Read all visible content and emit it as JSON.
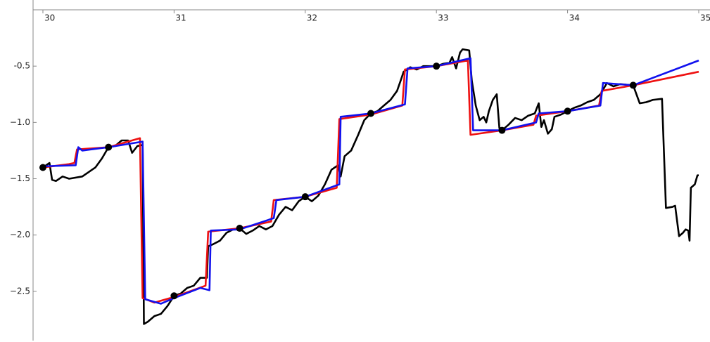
{
  "chart_data": {
    "type": "line",
    "xlim": [
      29.925,
      35.0
    ],
    "ylim": [
      -2.95,
      0.0
    ],
    "xticks": [
      30,
      31,
      32,
      33,
      34,
      35
    ],
    "yticks": [
      {
        "value": -0.5,
        "label": "-0.5"
      },
      {
        "value": -1.0,
        "label": "−1.0"
      },
      {
        "value": -1.5,
        "label": "−1.5"
      },
      {
        "value": -2.0,
        "label": "−2.0"
      },
      {
        "value": -2.5,
        "label": "−2.5"
      }
    ],
    "grid": false,
    "series": [
      {
        "color": "#000000",
        "mode": "line",
        "x": [
          30,
          30.05,
          30.07,
          30.1,
          30.15,
          30.2,
          30.3,
          30.4,
          30.45,
          30.5,
          30.55,
          30.6,
          30.65,
          30.68,
          30.72,
          30.76,
          30.77,
          30.8,
          30.85,
          30.9,
          30.95,
          31,
          31.05,
          31.1,
          31.15,
          31.2,
          31.25,
          31.26,
          31.3,
          31.35,
          31.4,
          31.45,
          31.5,
          31.55,
          31.6,
          31.65,
          31.7,
          31.75,
          31.8,
          31.85,
          31.9,
          31.95,
          32,
          32.05,
          32.1,
          32.15,
          32.2,
          32.25,
          32.27,
          32.3,
          32.35,
          32.4,
          32.45,
          32.5,
          32.55,
          32.6,
          32.65,
          32.7,
          32.73,
          32.75,
          32.8,
          32.85,
          32.9,
          33,
          33.05,
          33.1,
          33.12,
          33.15,
          33.18,
          33.2,
          33.25,
          33.27,
          33.3,
          33.33,
          33.36,
          33.38,
          33.4,
          33.43,
          33.46,
          33.48,
          33.5,
          33.55,
          33.6,
          33.65,
          33.7,
          33.75,
          33.78,
          33.8,
          33.82,
          33.85,
          33.88,
          33.9,
          33.95,
          34,
          34.05,
          34.1,
          34.15,
          34.2,
          34.25,
          34.3,
          34.35,
          34.4,
          34.5,
          34.55,
          34.6,
          34.65,
          34.72,
          34.75,
          34.8,
          34.82,
          34.85,
          34.88,
          34.9,
          34.92,
          34.93,
          34.94,
          34.97,
          34.99,
          35
        ],
        "values": [
          -1.4,
          -1.36,
          -1.51,
          -1.52,
          -1.48,
          -1.5,
          -1.48,
          -1.4,
          -1.32,
          -1.22,
          -1.21,
          -1.16,
          -1.16,
          -1.27,
          -1.21,
          -1.2,
          -2.79,
          -2.77,
          -2.72,
          -2.7,
          -2.63,
          -2.54,
          -2.52,
          -2.47,
          -2.45,
          -2.38,
          -2.38,
          -2.1,
          -2.08,
          -2.05,
          -1.98,
          -1.95,
          -1.94,
          -1.99,
          -1.96,
          -1.92,
          -1.95,
          -1.92,
          -1.82,
          -1.75,
          -1.78,
          -1.7,
          -1.66,
          -1.7,
          -1.65,
          -1.55,
          -1.42,
          -1.38,
          -1.48,
          -1.3,
          -1.25,
          -1.12,
          -0.98,
          -0.92,
          -0.9,
          -0.85,
          -0.8,
          -0.72,
          -0.62,
          -0.55,
          -0.51,
          -0.53,
          -0.5,
          -0.5,
          -0.48,
          -0.47,
          -0.42,
          -0.52,
          -0.38,
          -0.35,
          -0.36,
          -0.63,
          -0.85,
          -0.98,
          -0.95,
          -1.0,
          -0.9,
          -0.8,
          -0.75,
          -1.05,
          -1.07,
          -1.02,
          -0.96,
          -0.98,
          -0.94,
          -0.92,
          -0.83,
          -1.04,
          -0.98,
          -1.1,
          -1.06,
          -0.95,
          -0.93,
          -0.9,
          -0.87,
          -0.85,
          -0.82,
          -0.8,
          -0.75,
          -0.65,
          -0.68,
          -0.66,
          -0.67,
          -0.83,
          -0.82,
          -0.8,
          -0.79,
          -1.76,
          -1.75,
          -1.74,
          -2.01,
          -1.98,
          -1.95,
          -1.96,
          -2.05,
          -1.58,
          -1.55,
          -1.47,
          -1.47
        ]
      },
      {
        "color": "#ee1111",
        "mode": "line",
        "x": [
          30,
          30.2,
          30.24,
          30.26,
          30.5,
          30.74,
          30.76,
          30.85,
          31,
          31.24,
          31.26,
          31.5,
          31.74,
          31.76,
          32,
          32.24,
          32.26,
          32.5,
          32.74,
          32.76,
          33,
          33.24,
          33.26,
          33.5,
          33.74,
          33.76,
          34,
          34.24,
          34.26,
          34.5,
          35
        ],
        "values": [
          -1.4,
          -1.37,
          -1.36,
          -1.24,
          -1.22,
          -1.14,
          -2.56,
          -2.6,
          -2.55,
          -2.45,
          -1.97,
          -1.94,
          -1.88,
          -1.69,
          -1.66,
          -1.58,
          -0.97,
          -0.93,
          -0.85,
          -0.53,
          -0.5,
          -0.45,
          -1.11,
          -1.07,
          -1.02,
          -0.94,
          -0.9,
          -0.85,
          -0.72,
          -0.67,
          -0.55
        ]
      },
      {
        "color": "#1111ee",
        "mode": "line",
        "x": [
          30,
          30.25,
          30.27,
          30.3,
          30.5,
          30.76,
          30.78,
          30.9,
          31,
          31.2,
          31.27,
          31.28,
          31.5,
          31.76,
          31.78,
          32,
          32.26,
          32.27,
          32.5,
          32.76,
          32.78,
          33,
          33.26,
          33.28,
          33.5,
          33.76,
          33.78,
          34,
          34.25,
          34.27,
          34.5,
          35
        ],
        "values": [
          -1.39,
          -1.38,
          -1.22,
          -1.25,
          -1.22,
          -1.17,
          -2.57,
          -2.61,
          -2.56,
          -2.47,
          -2.49,
          -1.96,
          -1.95,
          -1.85,
          -1.69,
          -1.66,
          -1.55,
          -0.95,
          -0.92,
          -0.84,
          -0.52,
          -0.5,
          -0.43,
          -1.07,
          -1.07,
          -1.0,
          -0.92,
          -0.9,
          -0.85,
          -0.65,
          -0.67,
          -0.45
        ]
      },
      {
        "color": "#000000",
        "mode": "markers",
        "x": [
          30,
          30.5,
          31,
          31.5,
          32,
          32.5,
          33,
          33.5,
          34,
          34.5
        ],
        "values": [
          -1.4,
          -1.22,
          -2.54,
          -1.94,
          -1.66,
          -0.92,
          -0.5,
          -1.07,
          -0.9,
          -0.67
        ]
      }
    ]
  }
}
